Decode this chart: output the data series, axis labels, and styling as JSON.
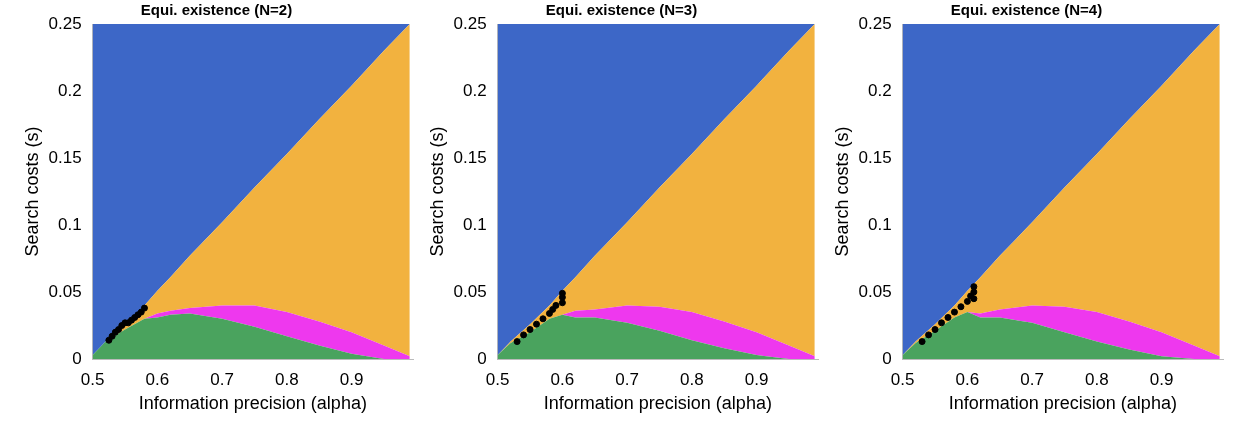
{
  "chart_data": [
    {
      "type": "area",
      "title": "Equi. existence (N=2)",
      "xlabel": "Information precision (alpha)",
      "ylabel": "Search costs (s)",
      "stacked": true,
      "grid": false,
      "x": [
        0.5,
        0.52,
        0.55,
        0.58,
        0.6,
        0.62,
        0.65,
        0.7,
        0.75,
        0.8,
        0.85,
        0.9,
        0.95,
        0.99
      ],
      "xlim": [
        0.5,
        0.995
      ],
      "xticks": [
        0.5,
        0.6,
        0.7,
        0.8,
        0.9
      ],
      "ylim": [
        0,
        0.25
      ],
      "yticks": [
        0,
        0.05,
        0.1,
        0.15,
        0.2,
        0.25
      ],
      "series": [
        {
          "color": "#4aa35e",
          "values": [
            0.003,
            0.013,
            0.022,
            0.03,
            0.031,
            0.033,
            0.034,
            0.03,
            0.024,
            0.017,
            0.01,
            0.004,
            0,
            0
          ]
        },
        {
          "color": "#ee38ee",
          "values": [
            0,
            0,
            0,
            0,
            0.003,
            0.003,
            0.004,
            0.01,
            0.016,
            0.018,
            0.018,
            0.016,
            0.01,
            0.002
          ]
        },
        {
          "color": "#f2b23f",
          "values": [
            0,
            0,
            0.004,
            0.01,
            0.017,
            0.025,
            0.039,
            0.062,
            0.088,
            0.118,
            0.151,
            0.184,
            0.22,
            0.248
          ]
        },
        {
          "color": "#3d67c7",
          "values": [
            0.247,
            0.237,
            0.224,
            0.21,
            0.199,
            0.189,
            0.173,
            0.148,
            0.122,
            0.097,
            0.071,
            0.046,
            0.02,
            0
          ]
        },
        {
          "type": "scatter",
          "marker": "circle",
          "color": "#000000",
          "x": [
            0.525,
            0.53,
            0.535,
            0.54,
            0.545,
            0.55,
            0.555,
            0.56,
            0.565,
            0.57,
            0.575,
            0.58
          ],
          "values": [
            0.014,
            0.017,
            0.02,
            0.022,
            0.025,
            0.027,
            0.027,
            0.029,
            0.031,
            0.033,
            0.035,
            0.038
          ]
        }
      ]
    },
    {
      "type": "area",
      "title": "Equi. existence (N=3)",
      "xlabel": "Information precision (alpha)",
      "ylabel": "Search costs (s)",
      "stacked": true,
      "grid": false,
      "x": [
        0.5,
        0.52,
        0.55,
        0.58,
        0.6,
        0.62,
        0.65,
        0.7,
        0.75,
        0.8,
        0.85,
        0.9,
        0.95,
        0.99
      ],
      "xlim": [
        0.5,
        0.995
      ],
      "xticks": [
        0.5,
        0.6,
        0.7,
        0.8,
        0.9
      ],
      "ylim": [
        0,
        0.25
      ],
      "yticks": [
        0,
        0.05,
        0.1,
        0.15,
        0.2,
        0.25
      ],
      "series": [
        {
          "color": "#4aa35e",
          "values": [
            0.003,
            0.012,
            0.02,
            0.03,
            0.033,
            0.031,
            0.031,
            0.027,
            0.021,
            0.014,
            0.008,
            0.003,
            0,
            0
          ]
        },
        {
          "color": "#ee38ee",
          "values": [
            0,
            0,
            0,
            0,
            0,
            0.005,
            0.006,
            0.013,
            0.018,
            0.021,
            0.02,
            0.017,
            0.01,
            0.002
          ]
        },
        {
          "color": "#f2b23f",
          "values": [
            0,
            0.001,
            0.006,
            0.01,
            0.018,
            0.025,
            0.04,
            0.062,
            0.089,
            0.118,
            0.151,
            0.184,
            0.22,
            0.248
          ]
        },
        {
          "color": "#3d67c7",
          "values": [
            0.247,
            0.237,
            0.224,
            0.21,
            0.199,
            0.189,
            0.173,
            0.148,
            0.122,
            0.097,
            0.071,
            0.046,
            0.02,
            0
          ]
        },
        {
          "type": "scatter",
          "marker": "circle",
          "color": "#000000",
          "x": [
            0.53,
            0.54,
            0.55,
            0.56,
            0.57,
            0.58,
            0.585,
            0.59,
            0.595,
            0.6,
            0.6,
            0.6
          ],
          "values": [
            0.013,
            0.018,
            0.022,
            0.026,
            0.03,
            0.034,
            0.037,
            0.04,
            null,
            0.046,
            0.049,
            0.042
          ]
        }
      ]
    },
    {
      "type": "area",
      "title": "Equi. existence (N=4)",
      "xlabel": "Information precision (alpha)",
      "ylabel": "Search costs (s)",
      "stacked": true,
      "grid": false,
      "x": [
        0.5,
        0.52,
        0.55,
        0.58,
        0.6,
        0.62,
        0.65,
        0.7,
        0.75,
        0.8,
        0.85,
        0.9,
        0.95,
        0.99
      ],
      "xlim": [
        0.5,
        0.995
      ],
      "xticks": [
        0.5,
        0.6,
        0.7,
        0.8,
        0.9
      ],
      "ylim": [
        0,
        0.25
      ],
      "yticks": [
        0,
        0.05,
        0.1,
        0.15,
        0.2,
        0.25
      ],
      "series": [
        {
          "color": "#4aa35e",
          "values": [
            0.003,
            0.012,
            0.021,
            0.031,
            0.035,
            0.031,
            0.031,
            0.027,
            0.02,
            0.013,
            0.007,
            0.002,
            0,
            0
          ]
        },
        {
          "color": "#ee38ee",
          "values": [
            0,
            0,
            0,
            0,
            0,
            0.003,
            0.006,
            0.013,
            0.019,
            0.022,
            0.021,
            0.018,
            0.01,
            0.002
          ]
        },
        {
          "color": "#f2b23f",
          "values": [
            0,
            0.001,
            0.005,
            0.009,
            0.016,
            0.027,
            0.04,
            0.062,
            0.089,
            0.118,
            0.151,
            0.184,
            0.22,
            0.248
          ]
        },
        {
          "color": "#3d67c7",
          "values": [
            0.247,
            0.237,
            0.224,
            0.21,
            0.199,
            0.189,
            0.173,
            0.148,
            0.122,
            0.097,
            0.071,
            0.046,
            0.02,
            0
          ]
        },
        {
          "type": "scatter",
          "marker": "circle",
          "color": "#000000",
          "x": [
            0.53,
            0.54,
            0.55,
            0.56,
            0.57,
            0.58,
            0.59,
            0.6,
            0.605,
            0.61,
            0.61,
            0.61
          ],
          "values": [
            0.013,
            0.018,
            0.022,
            0.027,
            0.031,
            0.035,
            0.039,
            0.043,
            0.047,
            0.05,
            0.054,
            0.045
          ]
        }
      ]
    }
  ]
}
